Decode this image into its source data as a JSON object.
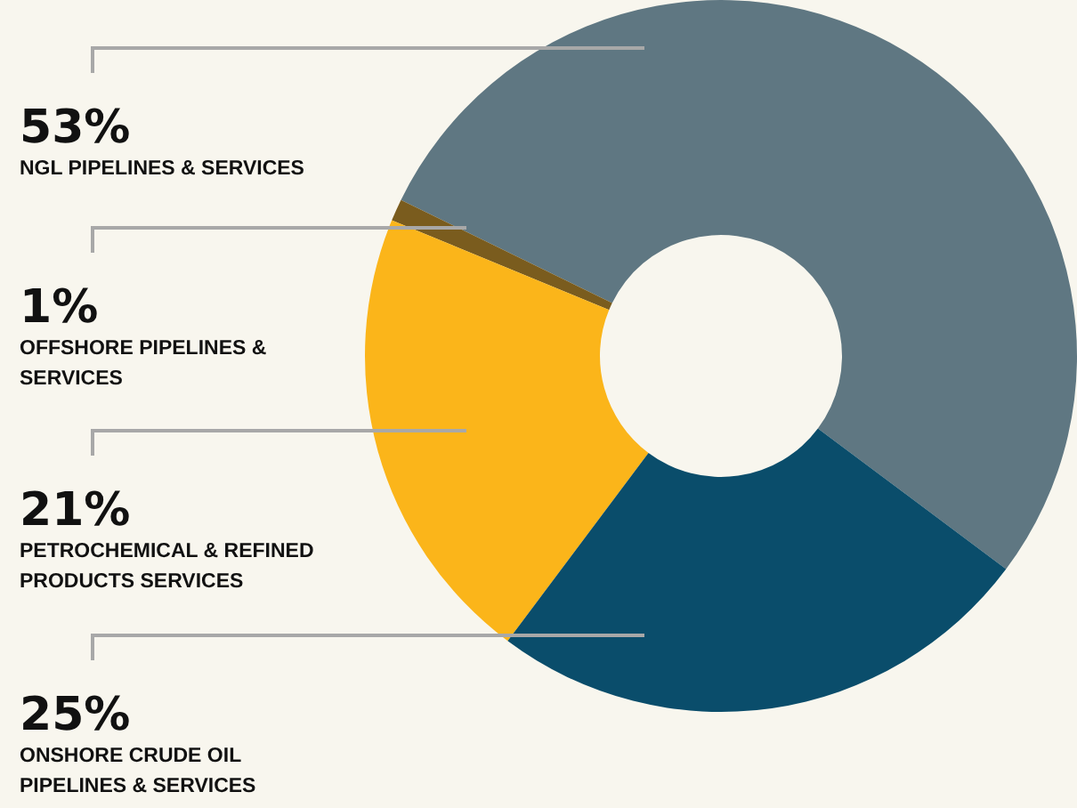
{
  "chart_data": {
    "type": "donut",
    "categories": [
      "NGL PIPELINES & SERVICES",
      "OFFSHORE PIPELINES & SERVICES",
      "PETROCHEMICAL & REFINED PRODUCTS SERVICES",
      "ONSHORE CRUDE OIL PIPELINES & SERVICES"
    ],
    "values": [
      53,
      1,
      21,
      25
    ],
    "colors": [
      "#5f7782",
      "#7a5c1e",
      "#fbb51a",
      "#0a4d6b"
    ],
    "value_labels": [
      "53%",
      "1%",
      "21%",
      "25%"
    ]
  }
}
